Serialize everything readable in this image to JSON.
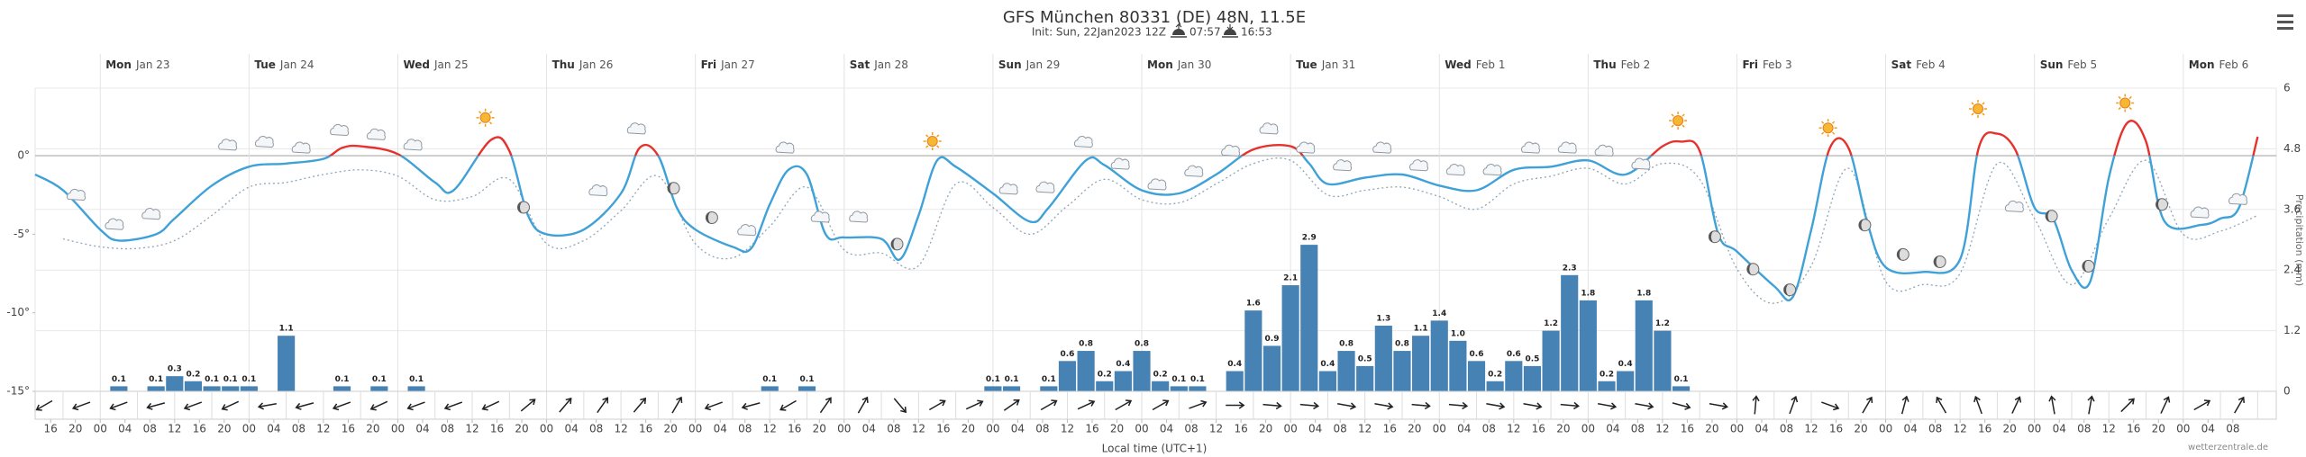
{
  "chart_data": {
    "type": "meteogram",
    "title": "GFS München 80331 (DE) 48N, 11.5E",
    "subtitle": "Init: Sun, 22Jan2023 12Z",
    "sunrise": "07:57",
    "sunset": "16:53",
    "x_label": "Local time (UTC+1)",
    "y2_label": "Precipitation (mm)",
    "credit": "wetterzentrale.de",
    "xlim": [
      13.5,
      375
    ],
    "xticks": [
      {
        "value": 16,
        "label": "16"
      },
      {
        "value": 20,
        "label": "20"
      },
      {
        "value": 24,
        "label": "00"
      },
      {
        "value": 28,
        "label": "04"
      },
      {
        "value": 32,
        "label": "08"
      },
      {
        "value": 36,
        "label": "12"
      },
      {
        "value": 40,
        "label": "16"
      },
      {
        "value": 44,
        "label": "20"
      },
      {
        "value": 48,
        "label": "00"
      },
      {
        "value": 52,
        "label": "04"
      },
      {
        "value": 56,
        "label": "08"
      },
      {
        "value": 60,
        "label": "12"
      },
      {
        "value": 64,
        "label": "16"
      },
      {
        "value": 68,
        "label": "20"
      },
      {
        "value": 72,
        "label": "00"
      },
      {
        "value": 76,
        "label": "04"
      },
      {
        "value": 80,
        "label": "08"
      },
      {
        "value": 84,
        "label": "12"
      },
      {
        "value": 88,
        "label": "16"
      },
      {
        "value": 92,
        "label": "20"
      },
      {
        "value": 96,
        "label": "00"
      },
      {
        "value": 100,
        "label": "04"
      },
      {
        "value": 104,
        "label": "08"
      },
      {
        "value": 108,
        "label": "12"
      },
      {
        "value": 112,
        "label": "16"
      },
      {
        "value": 116,
        "label": "20"
      },
      {
        "value": 120,
        "label": "00"
      },
      {
        "value": 124,
        "label": "04"
      },
      {
        "value": 128,
        "label": "08"
      },
      {
        "value": 132,
        "label": "12"
      },
      {
        "value": 136,
        "label": "16"
      },
      {
        "value": 140,
        "label": "20"
      },
      {
        "value": 144,
        "label": "00"
      },
      {
        "value": 148,
        "label": "04"
      },
      {
        "value": 152,
        "label": "08"
      },
      {
        "value": 156,
        "label": "12"
      },
      {
        "value": 160,
        "label": "16"
      },
      {
        "value": 164,
        "label": "20"
      },
      {
        "value": 168,
        "label": "00"
      },
      {
        "value": 172,
        "label": "04"
      },
      {
        "value": 176,
        "label": "08"
      },
      {
        "value": 180,
        "label": "12"
      },
      {
        "value": 184,
        "label": "16"
      },
      {
        "value": 188,
        "label": "20"
      },
      {
        "value": 192,
        "label": "00"
      },
      {
        "value": 196,
        "label": "04"
      },
      {
        "value": 200,
        "label": "08"
      },
      {
        "value": 204,
        "label": "12"
      },
      {
        "value": 208,
        "label": "16"
      },
      {
        "value": 212,
        "label": "20"
      },
      {
        "value": 216,
        "label": "00"
      },
      {
        "value": 220,
        "label": "04"
      },
      {
        "value": 224,
        "label": "08"
      },
      {
        "value": 228,
        "label": "12"
      },
      {
        "value": 232,
        "label": "16"
      },
      {
        "value": 236,
        "label": "20"
      },
      {
        "value": 240,
        "label": "00"
      },
      {
        "value": 244,
        "label": "04"
      },
      {
        "value": 248,
        "label": "08"
      },
      {
        "value": 252,
        "label": "12"
      },
      {
        "value": 256,
        "label": "16"
      },
      {
        "value": 260,
        "label": "20"
      },
      {
        "value": 264,
        "label": "00"
      },
      {
        "value": 268,
        "label": "04"
      },
      {
        "value": 272,
        "label": "08"
      },
      {
        "value": 276,
        "label": "12"
      },
      {
        "value": 280,
        "label": "16"
      },
      {
        "value": 284,
        "label": "20"
      },
      {
        "value": 288,
        "label": "00"
      },
      {
        "value": 292,
        "label": "04"
      },
      {
        "value": 296,
        "label": "08"
      },
      {
        "value": 300,
        "label": "12"
      },
      {
        "value": 304,
        "label": "16"
      },
      {
        "value": 308,
        "label": "20"
      },
      {
        "value": 312,
        "label": "00"
      },
      {
        "value": 316,
        "label": "04"
      },
      {
        "value": 320,
        "label": "08"
      },
      {
        "value": 324,
        "label": "12"
      },
      {
        "value": 328,
        "label": "16"
      },
      {
        "value": 332,
        "label": "20"
      },
      {
        "value": 336,
        "label": "00"
      },
      {
        "value": 340,
        "label": "04"
      },
      {
        "value": 344,
        "label": "08"
      },
      {
        "value": 348,
        "label": "12"
      },
      {
        "value": 352,
        "label": "16"
      },
      {
        "value": 356,
        "label": "20"
      },
      {
        "value": 360,
        "label": "00"
      },
      {
        "value": 364,
        "label": "04"
      },
      {
        "value": 368,
        "label": "08"
      }
    ],
    "days": [
      {
        "day": "Mon",
        "date": "Jan 23",
        "x": 24
      },
      {
        "day": "Tue",
        "date": "Jan 24",
        "x": 48
      },
      {
        "day": "Wed",
        "date": "Jan 25",
        "x": 72
      },
      {
        "day": "Thu",
        "date": "Jan 26",
        "x": 96
      },
      {
        "day": "Fri",
        "date": "Jan 27",
        "x": 120
      },
      {
        "day": "Sat",
        "date": "Jan 28",
        "x": 144
      },
      {
        "day": "Sun",
        "date": "Jan 29",
        "x": 168
      },
      {
        "day": "Mon",
        "date": "Jan 30",
        "x": 192
      },
      {
        "day": "Tue",
        "date": "Jan 31",
        "x": 216
      },
      {
        "day": "Wed",
        "date": "Feb 1",
        "x": 240
      },
      {
        "day": "Thu",
        "date": "Feb 2",
        "x": 264
      },
      {
        "day": "Fri",
        "date": "Feb 3",
        "x": 288
      },
      {
        "day": "Sat",
        "date": "Feb 4",
        "x": 312
      },
      {
        "day": "Sun",
        "date": "Feb 5",
        "x": 336
      },
      {
        "day": "Mon",
        "date": "Feb 6",
        "x": 360
      }
    ],
    "ylim": [
      -15,
      4.3
    ],
    "yticks": [
      {
        "value": 0,
        "label": "0°"
      },
      {
        "value": -5,
        "label": "-5°"
      },
      {
        "value": -10,
        "label": "-10°"
      },
      {
        "value": -15,
        "label": "-15°"
      }
    ],
    "y2lim": [
      0,
      6
    ],
    "y2ticks": [
      0,
      1.2,
      2.4,
      3.6,
      4.8,
      6
    ],
    "grid": true,
    "temperature": {
      "x": [
        13.5,
        18,
        24,
        27,
        33,
        36,
        42,
        48,
        54,
        60,
        63,
        66,
        72,
        78,
        81,
        87,
        90,
        93,
        96,
        102,
        108,
        111,
        114,
        117,
        120,
        126,
        129,
        132,
        135,
        138,
        141,
        144,
        150,
        153,
        156,
        159,
        162,
        168,
        174,
        177,
        183,
        186,
        192,
        198,
        204,
        210,
        216,
        219,
        222,
        228,
        234,
        240,
        246,
        252,
        258,
        264,
        270,
        276,
        279,
        282,
        285,
        288,
        294,
        297,
        300,
        303,
        306,
        309,
        312,
        318,
        324,
        327,
        330,
        333,
        336,
        339,
        342,
        345,
        348,
        351,
        354,
        357,
        363,
        366,
        369,
        372
      ],
      "values": [
        -1.2,
        -2.2,
        -4.7,
        -5.4,
        -5,
        -4,
        -1.9,
        -0.7,
        -0.5,
        -0.2,
        0.5,
        0.6,
        0.1,
        -1.7,
        -2.2,
        1,
        0.3,
        -3.8,
        -5,
        -4.7,
        -2.4,
        0.5,
        0,
        -3.3,
        -4.7,
        -5.8,
        -5.9,
        -3.1,
        -0.9,
        -1.2,
        -5,
        -5.2,
        -5.3,
        -6.6,
        -3.8,
        -0.3,
        -0.7,
        -2.4,
        -4.2,
        -3.3,
        -0.3,
        -0.6,
        -2.2,
        -2.4,
        -1.2,
        0.4,
        0.6,
        -0.5,
        -1.8,
        -1.4,
        -1.2,
        -1.9,
        -2.2,
        -0.9,
        -0.7,
        -0.3,
        -1.2,
        0.6,
        0.9,
        0.3,
        -5,
        -6.1,
        -8.3,
        -9,
        -4.7,
        0.5,
        0.5,
        -4.2,
        -7.1,
        -7.4,
        -6.6,
        0.5,
        1.4,
        0.3,
        -3.3,
        -4,
        -7.3,
        -8,
        -1.4,
        2.1,
        0.9,
        -4.2,
        -4.4,
        -4,
        -3.3,
        1.2
      ],
      "color_above_zero": "#e5322d",
      "color_below_zero": "#3ea1d8"
    },
    "dewpoint": {
      "x": [
        18,
        24,
        30,
        36,
        42,
        48,
        54,
        60,
        66,
        72,
        78,
        84,
        90,
        96,
        102,
        108,
        114,
        120,
        126,
        132,
        138,
        144,
        150,
        156,
        162,
        168,
        174,
        180,
        186,
        192,
        198,
        204,
        210,
        216,
        222,
        228,
        234,
        240,
        246,
        252,
        258,
        264,
        270,
        276,
        282,
        288,
        294,
        300,
        306,
        312,
        318,
        324,
        330,
        336,
        342,
        348,
        354,
        360,
        366,
        372
      ],
      "values": [
        -5.3,
        -5.8,
        -5.9,
        -5.4,
        -3.8,
        -2,
        -1.7,
        -1.2,
        -0.9,
        -1.3,
        -2.8,
        -2.6,
        -1.5,
        -5.6,
        -5.4,
        -3.5,
        -1.3,
        -5.6,
        -6.5,
        -4.5,
        -2,
        -6,
        -6.2,
        -7,
        -1.8,
        -3.3,
        -5,
        -3.2,
        -1.5,
        -2.8,
        -3,
        -1.8,
        -0.5,
        -0.3,
        -2.5,
        -2.2,
        -2,
        -2.6,
        -3.4,
        -1.8,
        -1.3,
        -0.8,
        -1.8,
        -0.5,
        -1.5,
        -7.2,
        -9.4,
        -7,
        -0.8,
        -8,
        -8.2,
        -7.5,
        -0.5,
        -4,
        -8.2,
        -4,
        -0.3,
        -5,
        -4.8,
        -3.8
      ],
      "color": "#8ea6b8"
    },
    "precipitation": {
      "axis": "y2",
      "x": [
        27,
        33,
        36,
        39,
        42,
        45,
        48,
        54,
        63,
        69,
        75,
        132,
        138,
        168,
        171,
        177,
        180,
        183,
        186,
        189,
        192,
        195,
        198,
        201,
        207,
        210,
        213,
        216,
        219,
        222,
        225,
        228,
        231,
        234,
        237,
        240,
        243,
        246,
        249,
        252,
        255,
        258,
        261,
        264,
        267,
        270,
        273,
        276,
        279
      ],
      "values": [
        0.1,
        0.1,
        0.3,
        0.2,
        0.1,
        0.1,
        0.1,
        1.1,
        0.1,
        0.1,
        0.1,
        0.1,
        0.1,
        0.1,
        0.1,
        0.1,
        0.6,
        0.8,
        0.2,
        0.4,
        0.8,
        0.2,
        0.1,
        0.1,
        0.4,
        1.6,
        0.9,
        2.1,
        2.9,
        0.4,
        0.8,
        0.5,
        1.3,
        0.8,
        1.1,
        1.4,
        1,
        0.6,
        0.2,
        0.6,
        0.5,
        1.2,
        2.3,
        1.8,
        0.2,
        0.4,
        1.8,
        1.2,
        0.1
      ],
      "value_labels": [
        "0.1",
        "0.1",
        "0.3",
        "0.2",
        "0.1",
        "0.1",
        "0.1",
        "1.1",
        "0.1",
        "0.1",
        "0.1",
        "0.1",
        "0.1",
        "0.1",
        "0.1",
        "0.1",
        "0.6",
        "0.8",
        "0.2",
        "0.4",
        "0.8",
        "0.2",
        "0.1",
        "0.1",
        "0.4",
        "1.6",
        "0.9",
        "2.1",
        "2.9",
        "0.4",
        "0.8",
        "0.5",
        "1.3",
        "0.8",
        "1.1",
        "1.4",
        "1.0",
        "0.6",
        "0.2",
        "0.6",
        "0.5",
        "1.2",
        "2.3",
        "1.8",
        "0.2",
        "0.4",
        "1.8",
        "1.2",
        "0.1"
      ],
      "color": "#4682b4"
    },
    "wind": {
      "x": [
        15,
        21,
        27,
        33,
        39,
        45,
        51,
        57,
        63,
        69,
        75,
        81,
        87,
        93,
        99,
        105,
        111,
        117,
        123,
        129,
        135,
        141,
        147,
        153,
        159,
        165,
        171,
        177,
        183,
        189,
        195,
        201,
        207,
        213,
        219,
        225,
        231,
        237,
        243,
        249,
        255,
        261,
        267,
        273,
        279,
        285,
        291,
        297,
        303,
        309,
        315,
        321,
        327,
        333,
        339,
        345,
        351,
        357,
        363,
        369
      ],
      "direction": [
        240,
        250,
        250,
        255,
        250,
        245,
        260,
        255,
        250,
        245,
        250,
        250,
        245,
        50,
        40,
        35,
        40,
        30,
        250,
        255,
        240,
        35,
        30,
        140,
        60,
        65,
        55,
        60,
        65,
        60,
        60,
        70,
        90,
        95,
        95,
        100,
        100,
        95,
        95,
        100,
        100,
        95,
        100,
        100,
        105,
        100,
        5,
        20,
        110,
        30,
        15,
        330,
        340,
        25,
        350,
        10,
        45,
        25,
        60,
        30
      ]
    }
  }
}
